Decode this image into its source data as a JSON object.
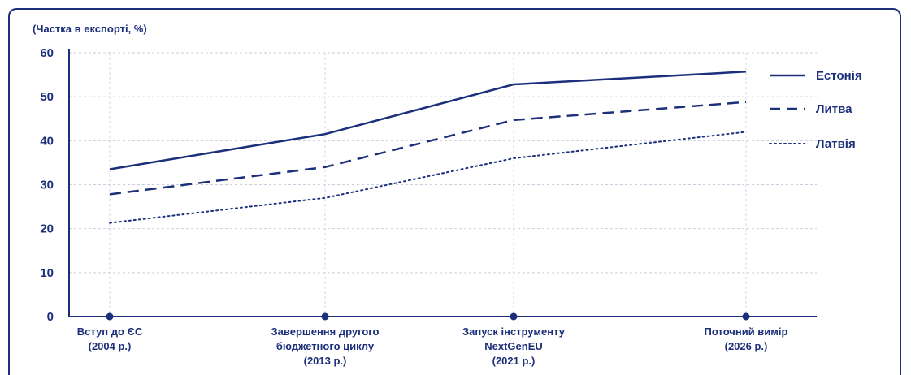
{
  "chart_data": {
    "type": "line",
    "ylabel": "(Частка в експорті, %)",
    "ylim": [
      0,
      60
    ],
    "yticks": [
      0,
      10,
      20,
      30,
      40,
      50,
      60
    ],
    "grid": true,
    "legend_position": "right",
    "categories": [
      [
        "Вступ до ЄС",
        "(2004 р.)"
      ],
      [
        "Завершення другого",
        "бюджетного циклу",
        "(2013 р.)"
      ],
      [
        "Запуск інструменту",
        "NextGenEU",
        "(2021 р.)"
      ],
      [
        "Поточний вимір",
        "(2026 р.)"
      ]
    ],
    "series": [
      {
        "name": "Естонія",
        "style": "solid",
        "values": [
          33.5,
          41.5,
          52.8,
          55.7
        ]
      },
      {
        "name": "Литва",
        "style": "dashed",
        "values": [
          27.8,
          34.0,
          44.7,
          48.8
        ]
      },
      {
        "name": "Латвія",
        "style": "dotted",
        "values": [
          21.3,
          27.0,
          36.0,
          42.0
        ]
      }
    ],
    "color": "#1c2f7a"
  }
}
